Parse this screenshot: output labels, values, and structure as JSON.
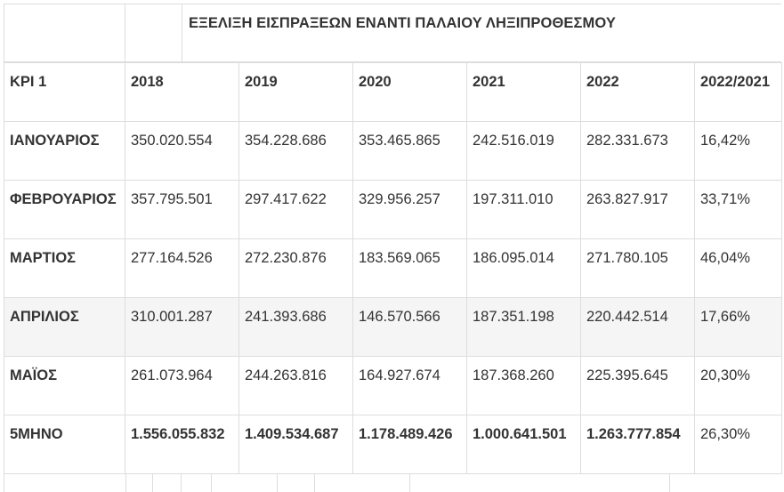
{
  "title": "ΕΞΕΛΙΞΗ ΕΙΣΠΡΑΞΕΩΝ ΕΝΑΝΤΙ ΠΑΛΑΙΟΥ ΛΗΞΙΠΡΟΘΕΣΜΟΥ",
  "header": [
    "KPI 1",
    "2018",
    "2019",
    "2020",
    "2021",
    "2022",
    "2022/2021"
  ],
  "rows": [
    [
      "ΙΑΝΟΥΑΡΙΟΣ",
      "350.020.554",
      "354.228.686",
      "353.465.865",
      "242.516.019",
      "282.331.673",
      "16,42%"
    ],
    [
      "ΦΕΒΡΟΥΑΡΙΟΣ",
      "357.795.501",
      "297.417.622",
      "329.956.257",
      "197.311.010",
      "263.827.917",
      "33,71%"
    ],
    [
      "ΜΑΡΤΙΟΣ",
      "277.164.526",
      "272.230.876",
      "183.569.065",
      "186.095.014",
      "271.780.105",
      "46,04%"
    ],
    [
      "ΑΠΡΙΛΙΟΣ",
      "310.001.287",
      "241.393.686",
      "146.570.566",
      "187.351.198",
      "220.442.514",
      "17,66%"
    ],
    [
      "ΜΑΪΟΣ",
      "261.073.964",
      "244.263.816",
      "164.927.674",
      "187.368.260",
      "225.395.645",
      "20,30%"
    ],
    [
      "5ΜΗΝΟ",
      "1.556.055.832",
      "1.409.534.687",
      "1.178.489.426",
      "1.000.641.501",
      "1.263.777.854",
      "26,30%"
    ]
  ],
  "colors": {
    "border": "#dddddd",
    "text": "#333333",
    "shaded_row": "#f5f5f5"
  }
}
